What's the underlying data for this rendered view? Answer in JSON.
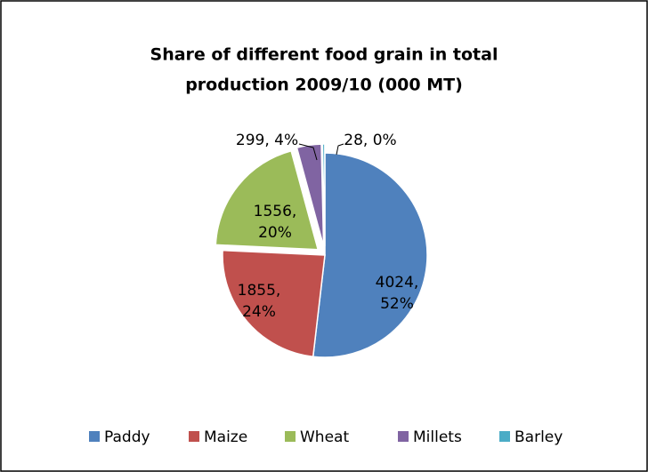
{
  "chart_data": {
    "type": "pie",
    "title": [
      "Share of different food grain in total",
      "production 2009/10 (000 MT)"
    ],
    "categories": [
      "Paddy",
      "Maize",
      "Wheat",
      "Millets",
      "Barley"
    ],
    "values": [
      4024,
      1855,
      1556,
      299,
      28
    ],
    "value_labels": [
      "4024, 52%",
      "1855, 24%",
      "1556, 20%",
      "299, 4%",
      "28, 0%"
    ],
    "colors": [
      "#4f81bd",
      "#c0504d",
      "#9bbb59",
      "#8064a2",
      "#4bacc6"
    ],
    "legend": "bottom"
  }
}
